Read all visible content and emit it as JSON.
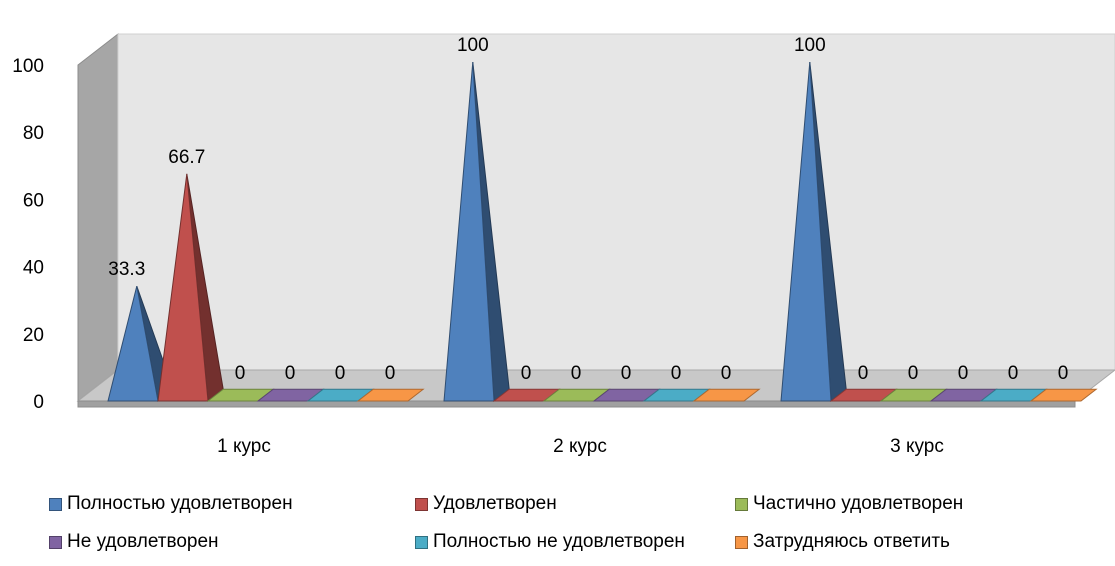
{
  "chart_data": {
    "type": "bar",
    "categories": [
      "1 курс",
      "2 курс",
      "3 курс"
    ],
    "series": [
      {
        "name": "Полностью удовлетворен",
        "values": [
          33.3,
          100,
          100
        ],
        "color": "#4F81BD"
      },
      {
        "name": "Удовлетворен",
        "values": [
          66.7,
          0,
          0
        ],
        "color": "#C0504D"
      },
      {
        "name": "Частично удовлетворен",
        "values": [
          0,
          0,
          0
        ],
        "color": "#9BBB59"
      },
      {
        "name": "Не удовлетворен",
        "values": [
          0,
          0,
          0
        ],
        "color": "#8064A2"
      },
      {
        "name": "Полностью не удовлетворен",
        "values": [
          0,
          0,
          0
        ],
        "color": "#4BACC6"
      },
      {
        "name": "Затрудняюсь ответить",
        "values": [
          0,
          0,
          0
        ],
        "color": "#F79646"
      }
    ],
    "data_labels": [
      [
        "33.3",
        "100",
        "100"
      ],
      [
        "66.7",
        "0",
        "0"
      ],
      [
        "0",
        "0",
        "0"
      ],
      [
        "0",
        "0",
        "0"
      ],
      [
        "0",
        "0",
        "0"
      ],
      [
        "0",
        "0",
        "0"
      ]
    ],
    "yticks": [
      "0",
      "20",
      "40",
      "60",
      "80",
      "100"
    ],
    "ylim": [
      0,
      100
    ],
    "legend_position": "bottom",
    "grid": false,
    "shape": "3d-pyramid"
  }
}
